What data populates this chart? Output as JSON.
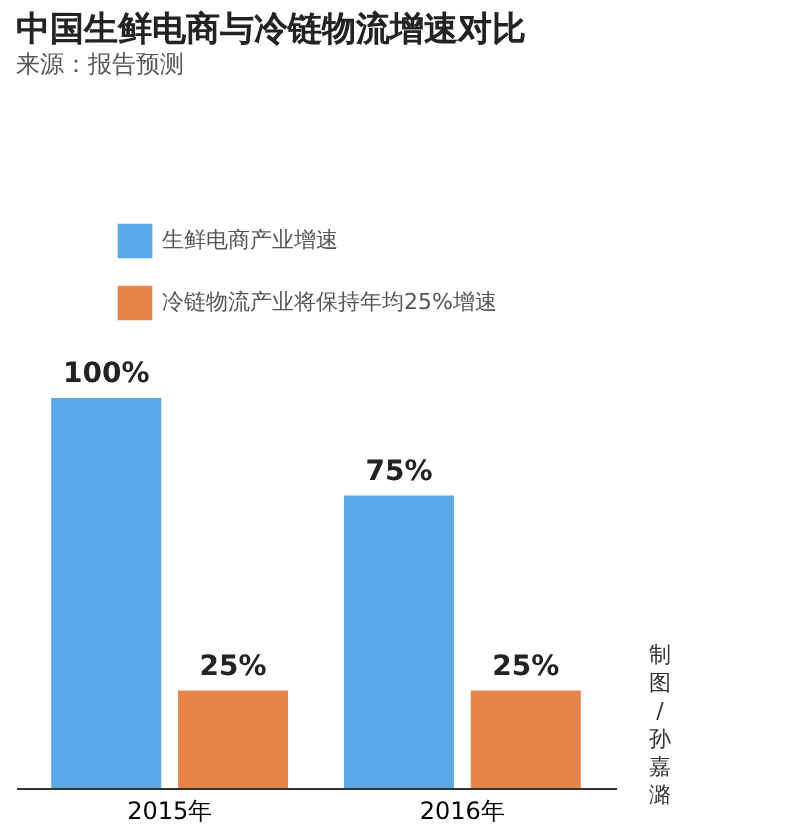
{
  "chart_data": {
    "type": "bar",
    "title": "中国生鲜电商与冷链物流增速对比",
    "subtitle": "来源：报告预测",
    "categories": [
      "2015年",
      "2016年"
    ],
    "series": [
      {
        "name": "生鲜电商产业增速",
        "color": "#5aa9e6",
        "values": [
          100,
          75
        ],
        "value_labels": [
          "100%",
          "75%"
        ]
      },
      {
        "name": "冷链物流产业将保持年均25%增速",
        "color": "#e8834a",
        "values": [
          25,
          25
        ],
        "value_labels": [
          "25%",
          "25%"
        ]
      }
    ],
    "legend": "top right",
    "grid": false,
    "tick_labels": "x",
    "annotations": [
      "制图/孙嘉潞"
    ]
  }
}
